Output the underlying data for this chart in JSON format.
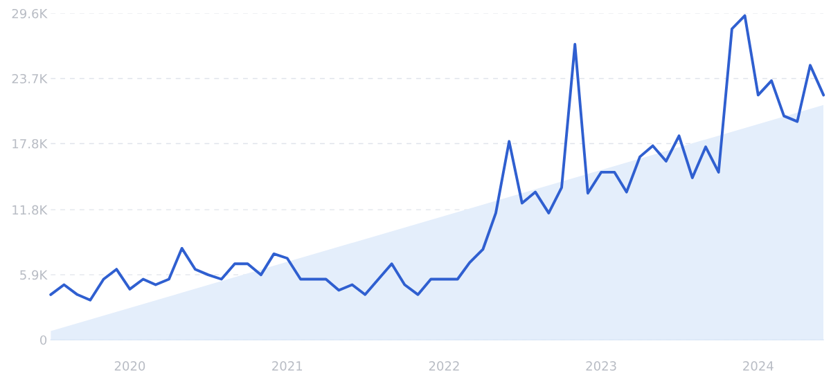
{
  "chart_data": {
    "type": "line",
    "x": [
      "2019-07",
      "2019-08",
      "2019-09",
      "2019-10",
      "2019-11",
      "2019-12",
      "2020-01",
      "2020-02",
      "2020-03",
      "2020-04",
      "2020-05",
      "2020-06",
      "2020-07",
      "2020-08",
      "2020-09",
      "2020-10",
      "2020-11",
      "2020-12",
      "2021-01",
      "2021-02",
      "2021-03",
      "2021-04",
      "2021-05",
      "2021-06",
      "2021-07",
      "2021-08",
      "2021-09",
      "2021-10",
      "2021-11",
      "2021-12",
      "2022-01",
      "2022-02",
      "2022-03",
      "2022-04",
      "2022-05",
      "2022-06",
      "2022-07",
      "2022-08",
      "2022-09",
      "2022-10",
      "2022-11",
      "2022-12",
      "2023-01",
      "2023-02",
      "2023-03",
      "2023-04",
      "2023-05",
      "2023-06",
      "2023-07",
      "2023-08",
      "2023-09",
      "2023-10",
      "2023-11",
      "2023-12",
      "2024-01",
      "2024-02",
      "2024-03",
      "2024-04",
      "2024-05",
      "2024-06"
    ],
    "series": [
      {
        "type": "area",
        "color": "#e4eefb",
        "x": [
          "2019-07",
          "2024-06"
        ],
        "values": [
          800,
          21300
        ]
      },
      {
        "color": "#2f5fd0",
        "values": [
          4100,
          5000,
          4100,
          3600,
          5500,
          6400,
          4600,
          5500,
          5000,
          5500,
          8300,
          6400,
          5900,
          5500,
          6900,
          6900,
          5900,
          7800,
          7400,
          5500,
          5500,
          5500,
          4500,
          5000,
          4100,
          5500,
          6900,
          5000,
          4100,
          5500,
          5500,
          5500,
          7000,
          8200,
          11500,
          18000,
          12400,
          13400,
          11500,
          13800,
          26800,
          13300,
          15200,
          15200,
          13400,
          16600,
          17600,
          16200,
          18500,
          14700,
          17500,
          15200,
          28200,
          29400,
          22200,
          23500,
          20300,
          19800,
          24900,
          22200
        ]
      }
    ],
    "xlim": [
      "2019-07",
      "2024-06"
    ],
    "xticks": [
      {
        "value": "2020-01",
        "label": "2020"
      },
      {
        "value": "2021-01",
        "label": "2021"
      },
      {
        "value": "2022-01",
        "label": "2022"
      },
      {
        "value": "2023-01",
        "label": "2023"
      },
      {
        "value": "2024-01",
        "label": "2024"
      }
    ],
    "ylim": [
      0,
      29600
    ],
    "yticks": [
      0,
      {
        "value": 5900,
        "label": "5.9K"
      },
      {
        "value": 11800,
        "label": "11.8K"
      },
      {
        "value": 17800,
        "label": "17.8K"
      },
      {
        "value": 23700,
        "label": "23.7K"
      },
      {
        "value": 29600,
        "label": "29.6K"
      }
    ],
    "grid": "y",
    "line_style": "solid",
    "marker": "none"
  }
}
